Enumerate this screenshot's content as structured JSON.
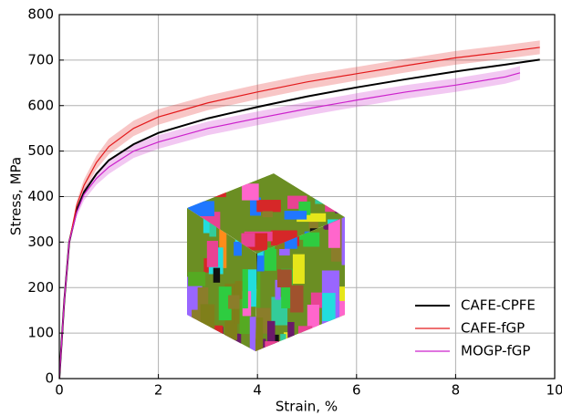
{
  "chart_data": {
    "type": "line",
    "xlabel": "Strain, %",
    "ylabel": "Stress, MPa",
    "xlim": [
      0,
      10
    ],
    "xticks": [
      0,
      2,
      4,
      6,
      8,
      10
    ],
    "ylim": [
      0,
      800
    ],
    "yticks": [
      0,
      100,
      200,
      300,
      400,
      500,
      600,
      700,
      800
    ],
    "grid": true,
    "legend": "lower right",
    "series": [
      {
        "name": "CAFE-CPFE",
        "color": "#000000",
        "x": [
          0,
          0.1,
          0.2,
          0.35,
          0.5,
          0.75,
          1,
          1.5,
          2,
          3,
          4,
          5,
          6,
          7,
          8,
          9,
          9.7
        ],
        "values": [
          0,
          170,
          300,
          370,
          410,
          450,
          480,
          515,
          540,
          572,
          597,
          620,
          640,
          658,
          675,
          690,
          701
        ]
      },
      {
        "name": "CAFE-fGP",
        "color": "#e31a1c",
        "x": [
          0,
          0.1,
          0.2,
          0.35,
          0.5,
          0.75,
          1,
          1.5,
          2,
          3,
          4,
          5,
          6,
          7,
          8,
          9,
          9.7
        ],
        "values": [
          0,
          170,
          300,
          380,
          425,
          475,
          510,
          550,
          575,
          606,
          630,
          652,
          670,
          688,
          705,
          718,
          728
        ],
        "lower": [
          0,
          168,
          296,
          370,
          412,
          460,
          493,
          533,
          558,
          590,
          614,
          636,
          655,
          673,
          690,
          703,
          713
        ],
        "upper": [
          0,
          172,
          304,
          390,
          438,
          490,
          527,
          567,
          592,
          622,
          646,
          668,
          685,
          703,
          720,
          733,
          743
        ]
      },
      {
        "name": "MOGP-fGP",
        "color": "#cc22cc",
        "x": [
          0,
          0.1,
          0.2,
          0.35,
          0.5,
          0.75,
          1,
          1.5,
          2,
          3,
          4,
          5,
          6,
          7,
          8,
          9,
          9.3
        ],
        "values": [
          0,
          170,
          300,
          365,
          405,
          440,
          465,
          500,
          520,
          550,
          572,
          593,
          612,
          630,
          645,
          663,
          672
        ],
        "lower": [
          0,
          168,
          296,
          355,
          392,
          426,
          450,
          485,
          505,
          535,
          557,
          578,
          597,
          615,
          630,
          648,
          657
        ],
        "upper": [
          0,
          172,
          304,
          375,
          418,
          454,
          480,
          515,
          535,
          565,
          587,
          608,
          627,
          645,
          660,
          678,
          687
        ]
      }
    ]
  }
}
